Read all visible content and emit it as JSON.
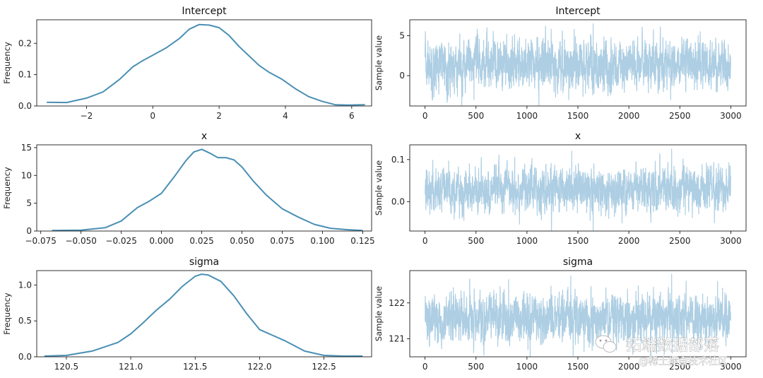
{
  "chart_data": [
    {
      "type": "line",
      "subtype": "density",
      "title": "Intercept",
      "ylabel": "Frequency",
      "xlabel": "",
      "xlim": [
        -3.5,
        6.6
      ],
      "ylim": [
        0,
        0.275
      ],
      "xticks": [
        -2,
        0,
        2,
        4,
        6
      ],
      "yticks": [
        0.0,
        0.1,
        0.2
      ],
      "xtick_labels": [
        "−2",
        "0",
        "2",
        "4",
        "6"
      ],
      "ytick_labels": [
        "0.0",
        "0.1",
        "0.2"
      ],
      "series": [
        {
          "x": [
            -3.2,
            -2.6,
            -2.0,
            -1.5,
            -1.0,
            -0.6,
            -0.3,
            0.0,
            0.4,
            0.8,
            1.1,
            1.4,
            1.7,
            2.0,
            2.3,
            2.6,
            2.9,
            3.2,
            3.5,
            3.9,
            4.3,
            4.7,
            5.1,
            5.5,
            5.9,
            6.4
          ],
          "y": [
            0.012,
            0.011,
            0.025,
            0.045,
            0.085,
            0.125,
            0.145,
            0.162,
            0.185,
            0.215,
            0.245,
            0.26,
            0.258,
            0.25,
            0.225,
            0.19,
            0.16,
            0.13,
            0.108,
            0.085,
            0.055,
            0.03,
            0.015,
            0.004,
            0.003,
            0.004
          ]
        }
      ]
    },
    {
      "type": "line",
      "subtype": "trace",
      "title": "Intercept",
      "ylabel": "Sample value",
      "xlabel": "",
      "xlim": [
        -150,
        3150
      ],
      "ylim": [
        -3.8,
        7.0
      ],
      "xticks": [
        0,
        500,
        1000,
        1500,
        2000,
        2500,
        3000
      ],
      "yticks": [
        0,
        5
      ],
      "xtick_labels": [
        "0",
        "500",
        "1000",
        "1500",
        "2000",
        "2500",
        "3000"
      ],
      "ytick_labels": [
        "0",
        "5"
      ],
      "n_samples": 3000,
      "center": 1.35,
      "spread": 1.5,
      "extremes": [
        [
          1650,
          6.5
        ],
        [
          1410,
          -3.0
        ],
        [
          2410,
          -3.0
        ],
        [
          480,
          -3.0
        ],
        [
          230,
          -2.4
        ],
        [
          1180,
          4.6
        ],
        [
          2680,
          5.0
        ]
      ]
    },
    {
      "type": "line",
      "subtype": "density",
      "title": "x",
      "ylabel": "Frequency",
      "xlabel": "",
      "xlim": [
        -0.0775,
        0.1305
      ],
      "ylim": [
        0,
        15.5
      ],
      "xticks": [
        -0.075,
        -0.05,
        -0.025,
        0.0,
        0.025,
        0.05,
        0.075,
        0.1,
        0.125
      ],
      "yticks": [
        0,
        5,
        10,
        15
      ],
      "xtick_labels": [
        "−0.075",
        "−0.050",
        "−0.025",
        "0.000",
        "0.025",
        "0.050",
        "0.075",
        "0.100",
        "0.125"
      ],
      "ytick_labels": [
        "0",
        "5",
        "10",
        "15"
      ],
      "series": [
        {
          "x": [
            -0.068,
            -0.05,
            -0.035,
            -0.025,
            -0.015,
            -0.008,
            0.0,
            0.008,
            0.015,
            0.02,
            0.025,
            0.03,
            0.035,
            0.04,
            0.045,
            0.05,
            0.057,
            0.065,
            0.075,
            0.085,
            0.095,
            0.105,
            0.115,
            0.125
          ],
          "y": [
            0.1,
            0.15,
            0.6,
            1.8,
            4.2,
            5.3,
            6.8,
            9.8,
            12.6,
            14.2,
            14.7,
            14.0,
            13.2,
            13.2,
            12.8,
            11.5,
            9.0,
            6.5,
            4.0,
            2.5,
            1.2,
            0.5,
            0.25,
            0.1
          ]
        }
      ]
    },
    {
      "type": "line",
      "subtype": "trace",
      "title": "x",
      "ylabel": "Sample value",
      "xlabel": "",
      "xlim": [
        -150,
        3150
      ],
      "ylim": [
        -0.07,
        0.135
      ],
      "xticks": [
        0,
        500,
        1000,
        1500,
        2000,
        2500,
        3000
      ],
      "yticks": [
        0.0,
        0.1
      ],
      "xtick_labels": [
        "0",
        "500",
        "1000",
        "1500",
        "2000",
        "2500",
        "3000"
      ],
      "ytick_labels": [
        "0.0",
        "0.1"
      ],
      "n_samples": 3000,
      "center": 0.028,
      "spread": 0.026,
      "extremes": [
        [
          2420,
          0.125
        ],
        [
          1440,
          0.12
        ],
        [
          1650,
          -0.068
        ],
        [
          1620,
          -0.045
        ],
        [
          880,
          0.105
        ],
        [
          2880,
          0.09
        ],
        [
          370,
          -0.035
        ]
      ]
    },
    {
      "type": "line",
      "subtype": "density",
      "title": "sigma",
      "ylabel": "Frequency",
      "xlabel": "",
      "xlim": [
        120.27,
        122.87
      ],
      "ylim": [
        0,
        1.2
      ],
      "xticks": [
        120.5,
        121.0,
        121.5,
        122.0,
        122.5
      ],
      "yticks": [
        0.0,
        0.5,
        1.0
      ],
      "xtick_labels": [
        "120.5",
        "121.0",
        "121.5",
        "122.0",
        "122.5"
      ],
      "ytick_labels": [
        "0.0",
        "0.5",
        "1.0"
      ],
      "series": [
        {
          "x": [
            120.33,
            120.5,
            120.7,
            120.9,
            121.0,
            121.1,
            121.2,
            121.3,
            121.4,
            121.5,
            121.55,
            121.6,
            121.7,
            121.8,
            121.9,
            122.0,
            122.1,
            122.2,
            122.35,
            122.5,
            122.65,
            122.8
          ],
          "y": [
            0.01,
            0.02,
            0.08,
            0.2,
            0.32,
            0.48,
            0.65,
            0.8,
            0.98,
            1.12,
            1.15,
            1.14,
            1.05,
            0.85,
            0.6,
            0.38,
            0.3,
            0.22,
            0.08,
            0.02,
            0.01,
            0.01
          ]
        }
      ]
    },
    {
      "type": "line",
      "subtype": "trace",
      "title": "sigma",
      "ylabel": "Sample value",
      "xlabel": "",
      "xlim": [
        -150,
        3150
      ],
      "ylim": [
        120.5,
        122.9
      ],
      "xticks": [
        0,
        500,
        1000,
        1500,
        2000,
        2500,
        3000
      ],
      "yticks": [
        121,
        122
      ],
      "xtick_labels": [
        "0",
        "500",
        "1000",
        "1500",
        "2000",
        "2500",
        "3000"
      ],
      "ytick_labels": [
        "121",
        "122"
      ],
      "n_samples": 3000,
      "center": 121.55,
      "spread": 0.33,
      "extremes": [
        [
          2420,
          122.8
        ],
        [
          1430,
          122.75
        ],
        [
          1560,
          120.65
        ],
        [
          820,
          122.65
        ],
        [
          2870,
          122.6
        ],
        [
          1010,
          120.7
        ],
        [
          2260,
          120.75
        ]
      ]
    }
  ],
  "watermark": {
    "line1": "拓端数据部落",
    "line2": "@稀土掘金技术社区"
  }
}
